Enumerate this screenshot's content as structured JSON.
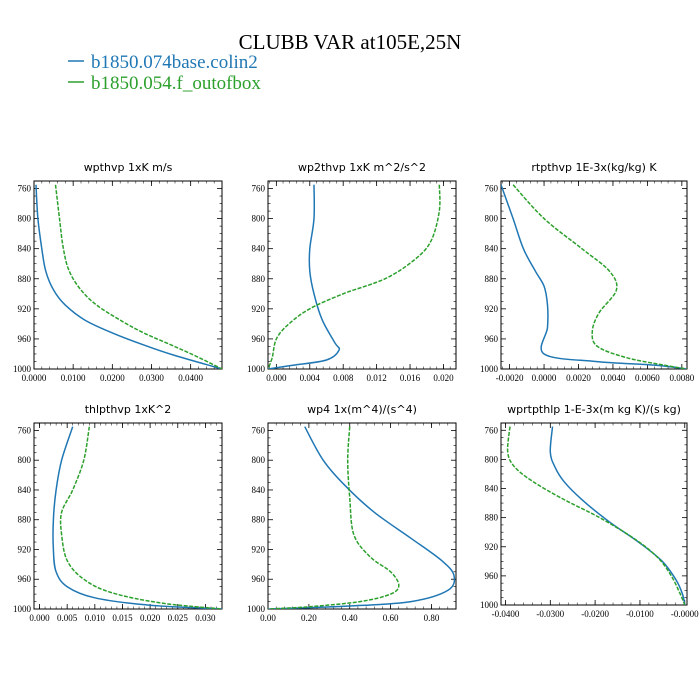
{
  "figure": {
    "title": "CLUBB VAR at105E,25N",
    "legend": [
      {
        "label": "b1850.074base.colin2",
        "color": "#1f77b4"
      },
      {
        "label": "b1850.054.f_outofbox",
        "color": "#2ca02c"
      }
    ]
  },
  "chart_data": [
    {
      "type": "line",
      "title": "wpthvp   1xK  m/s",
      "xlim": [
        0.0,
        0.048
      ],
      "ylim": [
        1000,
        750
      ],
      "xticks": [
        0.0,
        0.01,
        0.02,
        0.03,
        0.04
      ],
      "xtick_labels": [
        "0.0000",
        "0.0100",
        "0.0200",
        "0.0300",
        "0.0400"
      ],
      "yticks": [
        760,
        800,
        840,
        880,
        920,
        960,
        1000
      ],
      "ytick_labels": [
        "760",
        "800",
        "840",
        "880",
        "920",
        "960",
        "1000"
      ],
      "series": [
        {
          "color": "#1f77b4",
          "points": [
            [
              0.0005,
              755
            ],
            [
              0.001,
              800
            ],
            [
              0.002,
              840
            ],
            [
              0.003,
              870
            ],
            [
              0.005,
              895
            ],
            [
              0.008,
              915
            ],
            [
              0.013,
              935
            ],
            [
              0.02,
              952
            ],
            [
              0.028,
              968
            ],
            [
              0.036,
              982
            ],
            [
              0.048,
              1000
            ]
          ]
        },
        {
          "color": "#2ca02c",
          "points": [
            [
              0.0055,
              755
            ],
            [
              0.0065,
              800
            ],
            [
              0.0075,
              840
            ],
            [
              0.009,
              870
            ],
            [
              0.012,
              895
            ],
            [
              0.016,
              915
            ],
            [
              0.022,
              935
            ],
            [
              0.028,
              952
            ],
            [
              0.035,
              968
            ],
            [
              0.041,
              982
            ],
            [
              0.048,
              1000
            ]
          ]
        }
      ]
    },
    {
      "type": "line",
      "title": "wp2thvp   1xK  m^2/s^2",
      "xlim": [
        -0.001,
        0.0215
      ],
      "ylim": [
        1000,
        750
      ],
      "xticks": [
        0.0,
        0.004,
        0.008,
        0.012,
        0.016,
        0.02
      ],
      "xtick_labels": [
        "0.000",
        "0.004",
        "0.008",
        "0.012",
        "0.016",
        "0.020"
      ],
      "yticks": [
        760,
        800,
        840,
        880,
        920,
        960,
        1000
      ],
      "ytick_labels": [
        "760",
        "800",
        "840",
        "880",
        "920",
        "960",
        "1000"
      ],
      "series": [
        {
          "color": "#1f77b4",
          "points": [
            [
              0.0045,
              755
            ],
            [
              0.0045,
              800
            ],
            [
              0.004,
              840
            ],
            [
              0.004,
              870
            ],
            [
              0.0045,
              900
            ],
            [
              0.0055,
              935
            ],
            [
              0.007,
              965
            ],
            [
              0.0075,
              975
            ],
            [
              0.006,
              988
            ],
            [
              0.002,
              995
            ],
            [
              -0.001,
              1000
            ]
          ]
        },
        {
          "color": "#2ca02c",
          "points": [
            [
              0.0195,
              755
            ],
            [
              0.0195,
              790
            ],
            [
              0.0185,
              830
            ],
            [
              0.0165,
              855
            ],
            [
              0.013,
              880
            ],
            [
              0.008,
              900
            ],
            [
              0.004,
              920
            ],
            [
              0.0015,
              940
            ],
            [
              0.0,
              960
            ],
            [
              -0.0005,
              985
            ],
            [
              -0.001,
              1000
            ]
          ]
        }
      ]
    },
    {
      "type": "line",
      "title": "rtpthvp   1E-3x(kg/kg) K",
      "xlim": [
        -0.0025,
        0.0083
      ],
      "ylim": [
        1000,
        750
      ],
      "xticks": [
        -0.002,
        0.0,
        0.002,
        0.004,
        0.006,
        0.008
      ],
      "xtick_labels": [
        "-0.0020",
        "0.0000",
        "0.0020",
        "0.0040",
        "0.0060",
        "0.0080"
      ],
      "yticks": [
        760,
        800,
        840,
        880,
        920,
        960,
        1000
      ],
      "ytick_labels": [
        "760",
        "800",
        "840",
        "880",
        "920",
        "960",
        "1000"
      ],
      "series": [
        {
          "color": "#1f77b4",
          "points": [
            [
              -0.0025,
              755
            ],
            [
              -0.0018,
              800
            ],
            [
              -0.0012,
              840
            ],
            [
              -0.0005,
              870
            ],
            [
              0.0,
              890
            ],
            [
              0.0002,
              915
            ],
            [
              0.0002,
              945
            ],
            [
              0.0,
              980
            ],
            [
              0.003,
              990
            ],
            [
              0.0065,
              995
            ],
            [
              0.0083,
              1000
            ]
          ]
        },
        {
          "color": "#2ca02c",
          "points": [
            [
              -0.0018,
              755
            ],
            [
              0.0,
              800
            ],
            [
              0.0022,
              840
            ],
            [
              0.0038,
              870
            ],
            [
              0.0042,
              895
            ],
            [
              0.0032,
              925
            ],
            [
              0.0028,
              950
            ],
            [
              0.0031,
              970
            ],
            [
              0.0048,
              985
            ],
            [
              0.007,
              995
            ],
            [
              0.0083,
              1000
            ]
          ]
        }
      ]
    },
    {
      "type": "line",
      "title": "thlpthvp   1xK^2",
      "xlim": [
        -0.001,
        0.033
      ],
      "ylim": [
        1000,
        750
      ],
      "xticks": [
        0.0,
        0.005,
        0.01,
        0.015,
        0.02,
        0.025,
        0.03
      ],
      "xtick_labels": [
        "0.000",
        "0.005",
        "0.010",
        "0.015",
        "0.020",
        "0.025",
        "0.030"
      ],
      "yticks": [
        760,
        800,
        840,
        880,
        920,
        960,
        1000
      ],
      "ytick_labels": [
        "760",
        "800",
        "840",
        "880",
        "920",
        "960",
        "1000"
      ],
      "series": [
        {
          "color": "#1f77b4",
          "points": [
            [
              0.006,
              755
            ],
            [
              0.004,
              800
            ],
            [
              0.003,
              840
            ],
            [
              0.0025,
              880
            ],
            [
              0.0025,
              920
            ],
            [
              0.003,
              950
            ],
            [
              0.005,
              970
            ],
            [
              0.01,
              985
            ],
            [
              0.02,
              995
            ],
            [
              0.033,
              1000
            ]
          ]
        },
        {
          "color": "#2ca02c",
          "points": [
            [
              0.009,
              755
            ],
            [
              0.008,
              800
            ],
            [
              0.006,
              840
            ],
            [
              0.004,
              870
            ],
            [
              0.004,
              900
            ],
            [
              0.005,
              935
            ],
            [
              0.008,
              960
            ],
            [
              0.013,
              978
            ],
            [
              0.022,
              992
            ],
            [
              0.033,
              1000
            ]
          ]
        }
      ]
    },
    {
      "type": "line",
      "title": "wp4   1x(m^4)/(s^4)",
      "xlim": [
        0.0,
        0.92
      ],
      "ylim": [
        1000,
        750
      ],
      "xticks": [
        0.0,
        0.2,
        0.4,
        0.6,
        0.8
      ],
      "xtick_labels": [
        "0.00",
        "0.20",
        "0.40",
        "0.60",
        "0.80"
      ],
      "yticks": [
        760,
        800,
        840,
        880,
        920,
        960,
        1000
      ],
      "ytick_labels": [
        "760",
        "800",
        "840",
        "880",
        "920",
        "960",
        "1000"
      ],
      "series": [
        {
          "color": "#1f77b4",
          "points": [
            [
              0.18,
              755
            ],
            [
              0.27,
              800
            ],
            [
              0.38,
              835
            ],
            [
              0.52,
              870
            ],
            [
              0.7,
              905
            ],
            [
              0.85,
              935
            ],
            [
              0.91,
              955
            ],
            [
              0.88,
              975
            ],
            [
              0.7,
              990
            ],
            [
              0.4,
              996
            ],
            [
              0.0,
              1000
            ]
          ]
        },
        {
          "color": "#2ca02c",
          "points": [
            [
              0.4,
              755
            ],
            [
              0.39,
              800
            ],
            [
              0.4,
              850
            ],
            [
              0.42,
              900
            ],
            [
              0.5,
              930
            ],
            [
              0.6,
              950
            ],
            [
              0.64,
              968
            ],
            [
              0.6,
              980
            ],
            [
              0.45,
              990
            ],
            [
              0.2,
              997
            ],
            [
              0.0,
              1000
            ]
          ]
        }
      ]
    },
    {
      "type": "line",
      "title": "wprtpthlp   1-E-3x(m kg K)/(s kg)",
      "xlim": [
        -0.041,
        0.0005
      ],
      "ylim": [
        1000,
        750
      ],
      "xticks": [
        -0.04,
        -0.03,
        -0.02,
        -0.01,
        0.0
      ],
      "xtick_labels": [
        "-0.0400",
        "-0.0300",
        "-0.0200",
        "-0.0100",
        "-0.0000"
      ],
      "yticks": [
        760,
        800,
        840,
        880,
        920,
        960,
        1000
      ],
      "ytick_labels": [
        "760",
        "800",
        "840",
        "880",
        "920",
        "960",
        "1000"
      ],
      "series": [
        {
          "color": "#1f77b4",
          "points": [
            [
              -0.0295,
              755
            ],
            [
              -0.03,
              790
            ],
            [
              -0.029,
              810
            ],
            [
              -0.027,
              830
            ],
            [
              -0.023,
              855
            ],
            [
              -0.017,
              885
            ],
            [
              -0.01,
              915
            ],
            [
              -0.005,
              940
            ],
            [
              -0.002,
              965
            ],
            [
              -0.0005,
              985
            ],
            [
              0.0,
              1000
            ]
          ]
        },
        {
          "color": "#2ca02c",
          "points": [
            [
              -0.039,
              755
            ],
            [
              -0.0395,
              790
            ],
            [
              -0.038,
              810
            ],
            [
              -0.034,
              830
            ],
            [
              -0.027,
              855
            ],
            [
              -0.019,
              880
            ],
            [
              -0.011,
              910
            ],
            [
              -0.006,
              935
            ],
            [
              -0.003,
              960
            ],
            [
              -0.001,
              985
            ],
            [
              0.0,
              1000
            ]
          ]
        }
      ]
    }
  ]
}
